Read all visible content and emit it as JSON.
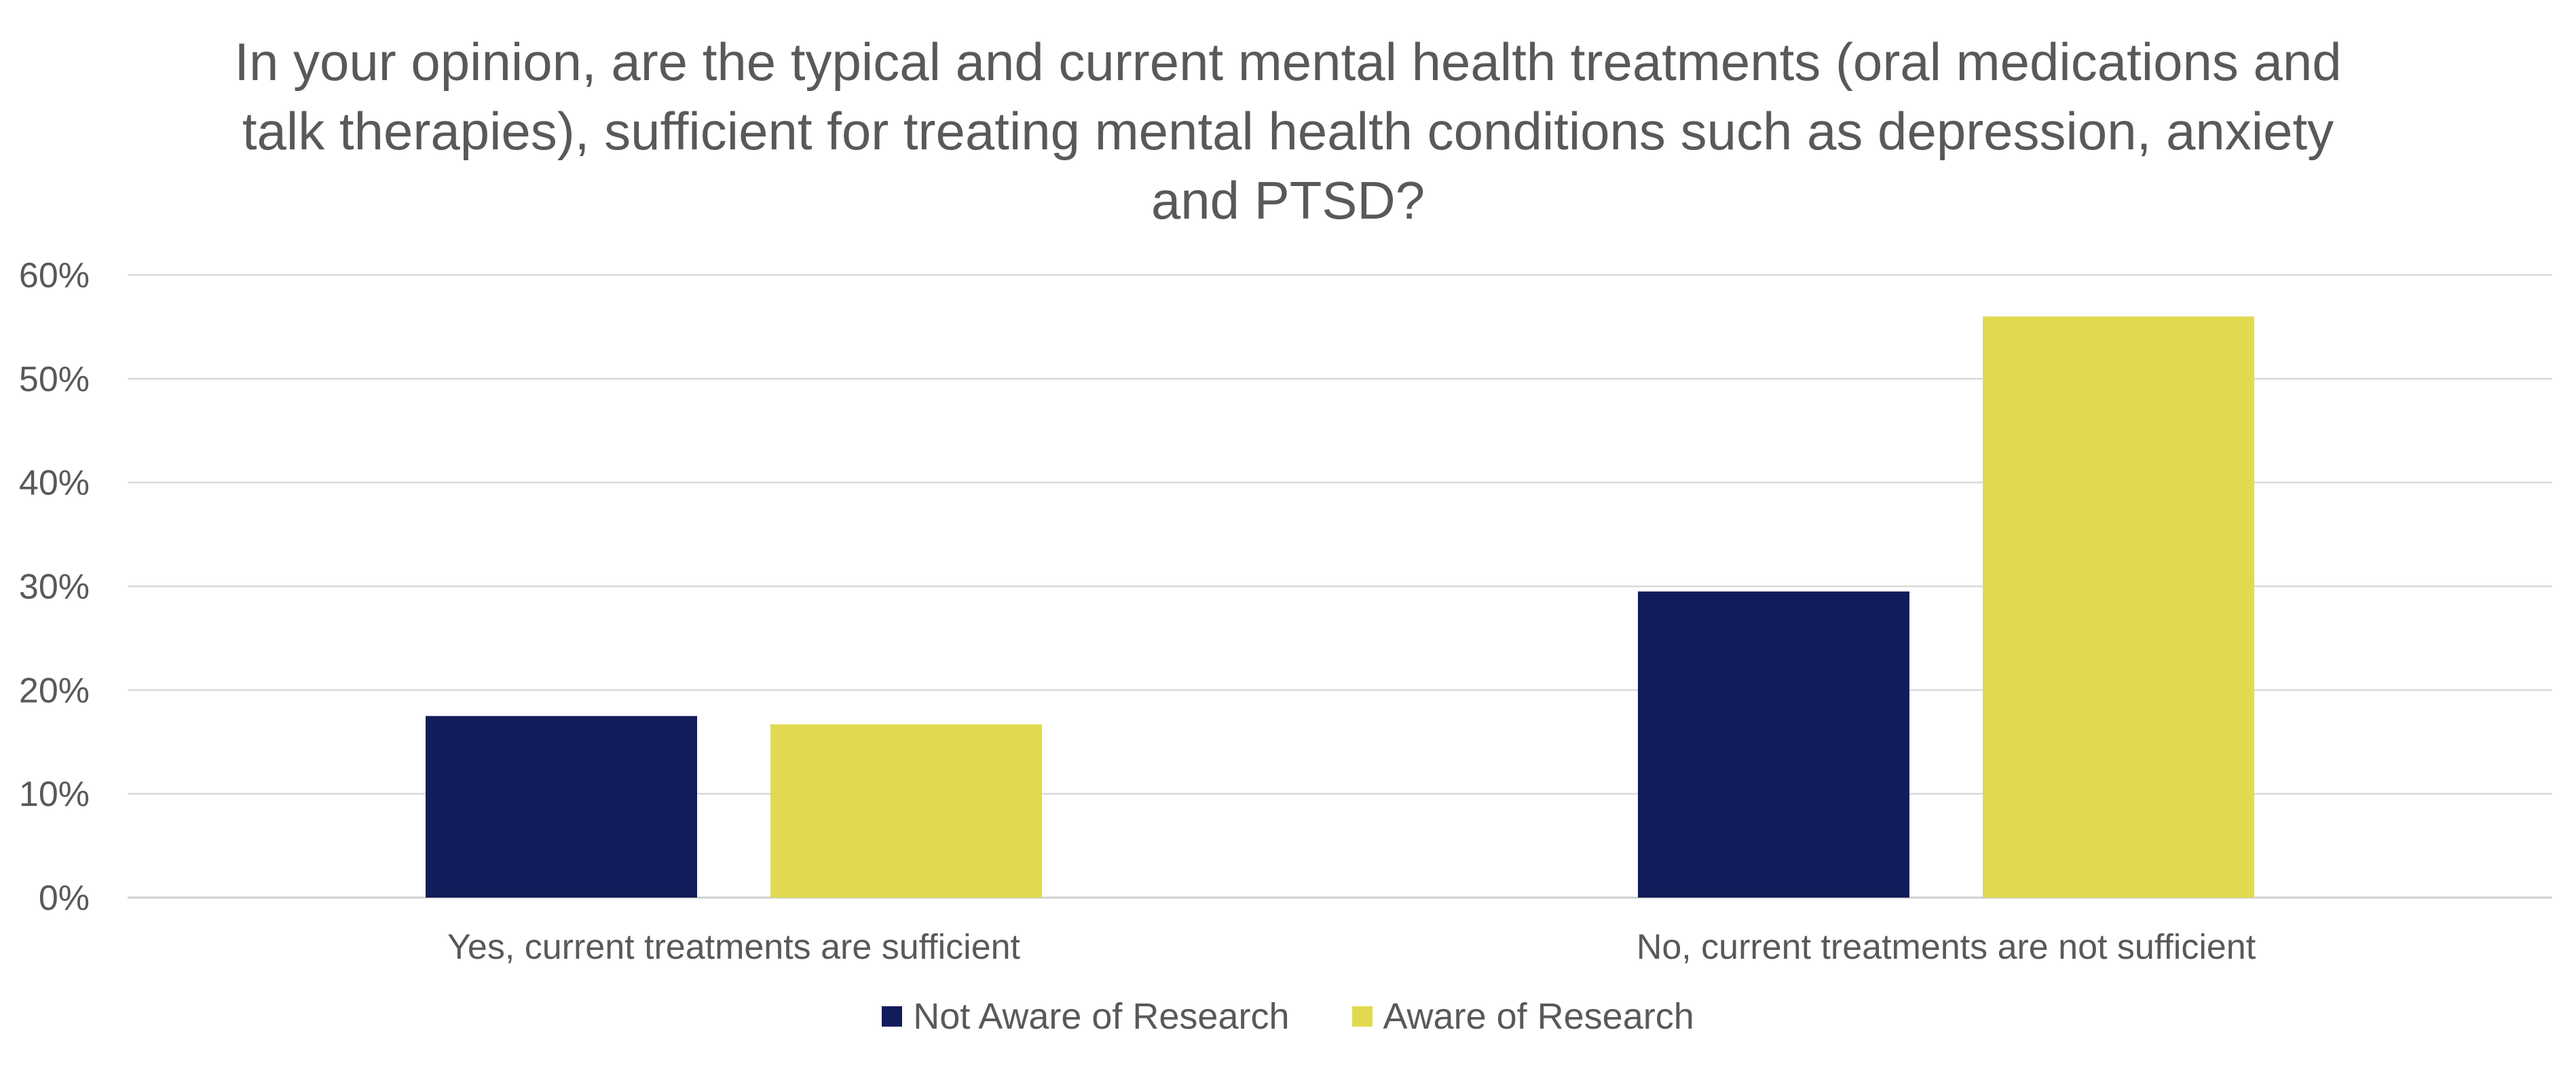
{
  "chart_data": {
    "type": "bar",
    "title": "In your opinion, are the typical and current mental health treatments (oral medications and talk therapies), sufficient for treating mental health conditions such as depression, anxiety and PTSD?",
    "xlabel": "",
    "ylabel": "",
    "categories": [
      "Yes, current treatments are sufficient",
      "No, current treatments are not sufficient"
    ],
    "series": [
      {
        "name": "Not Aware of Research",
        "color": "#131c5a",
        "values": [
          17.5,
          29.5
        ]
      },
      {
        "name": "Aware of Research",
        "color": "#e1da50",
        "values": [
          16.7,
          56
        ]
      }
    ],
    "ylim": [
      0,
      60
    ],
    "yticks": [
      "0%",
      "10%",
      "20%",
      "30%",
      "40%",
      "50%",
      "60%"
    ],
    "grid": true,
    "legend_position": "bottom"
  }
}
